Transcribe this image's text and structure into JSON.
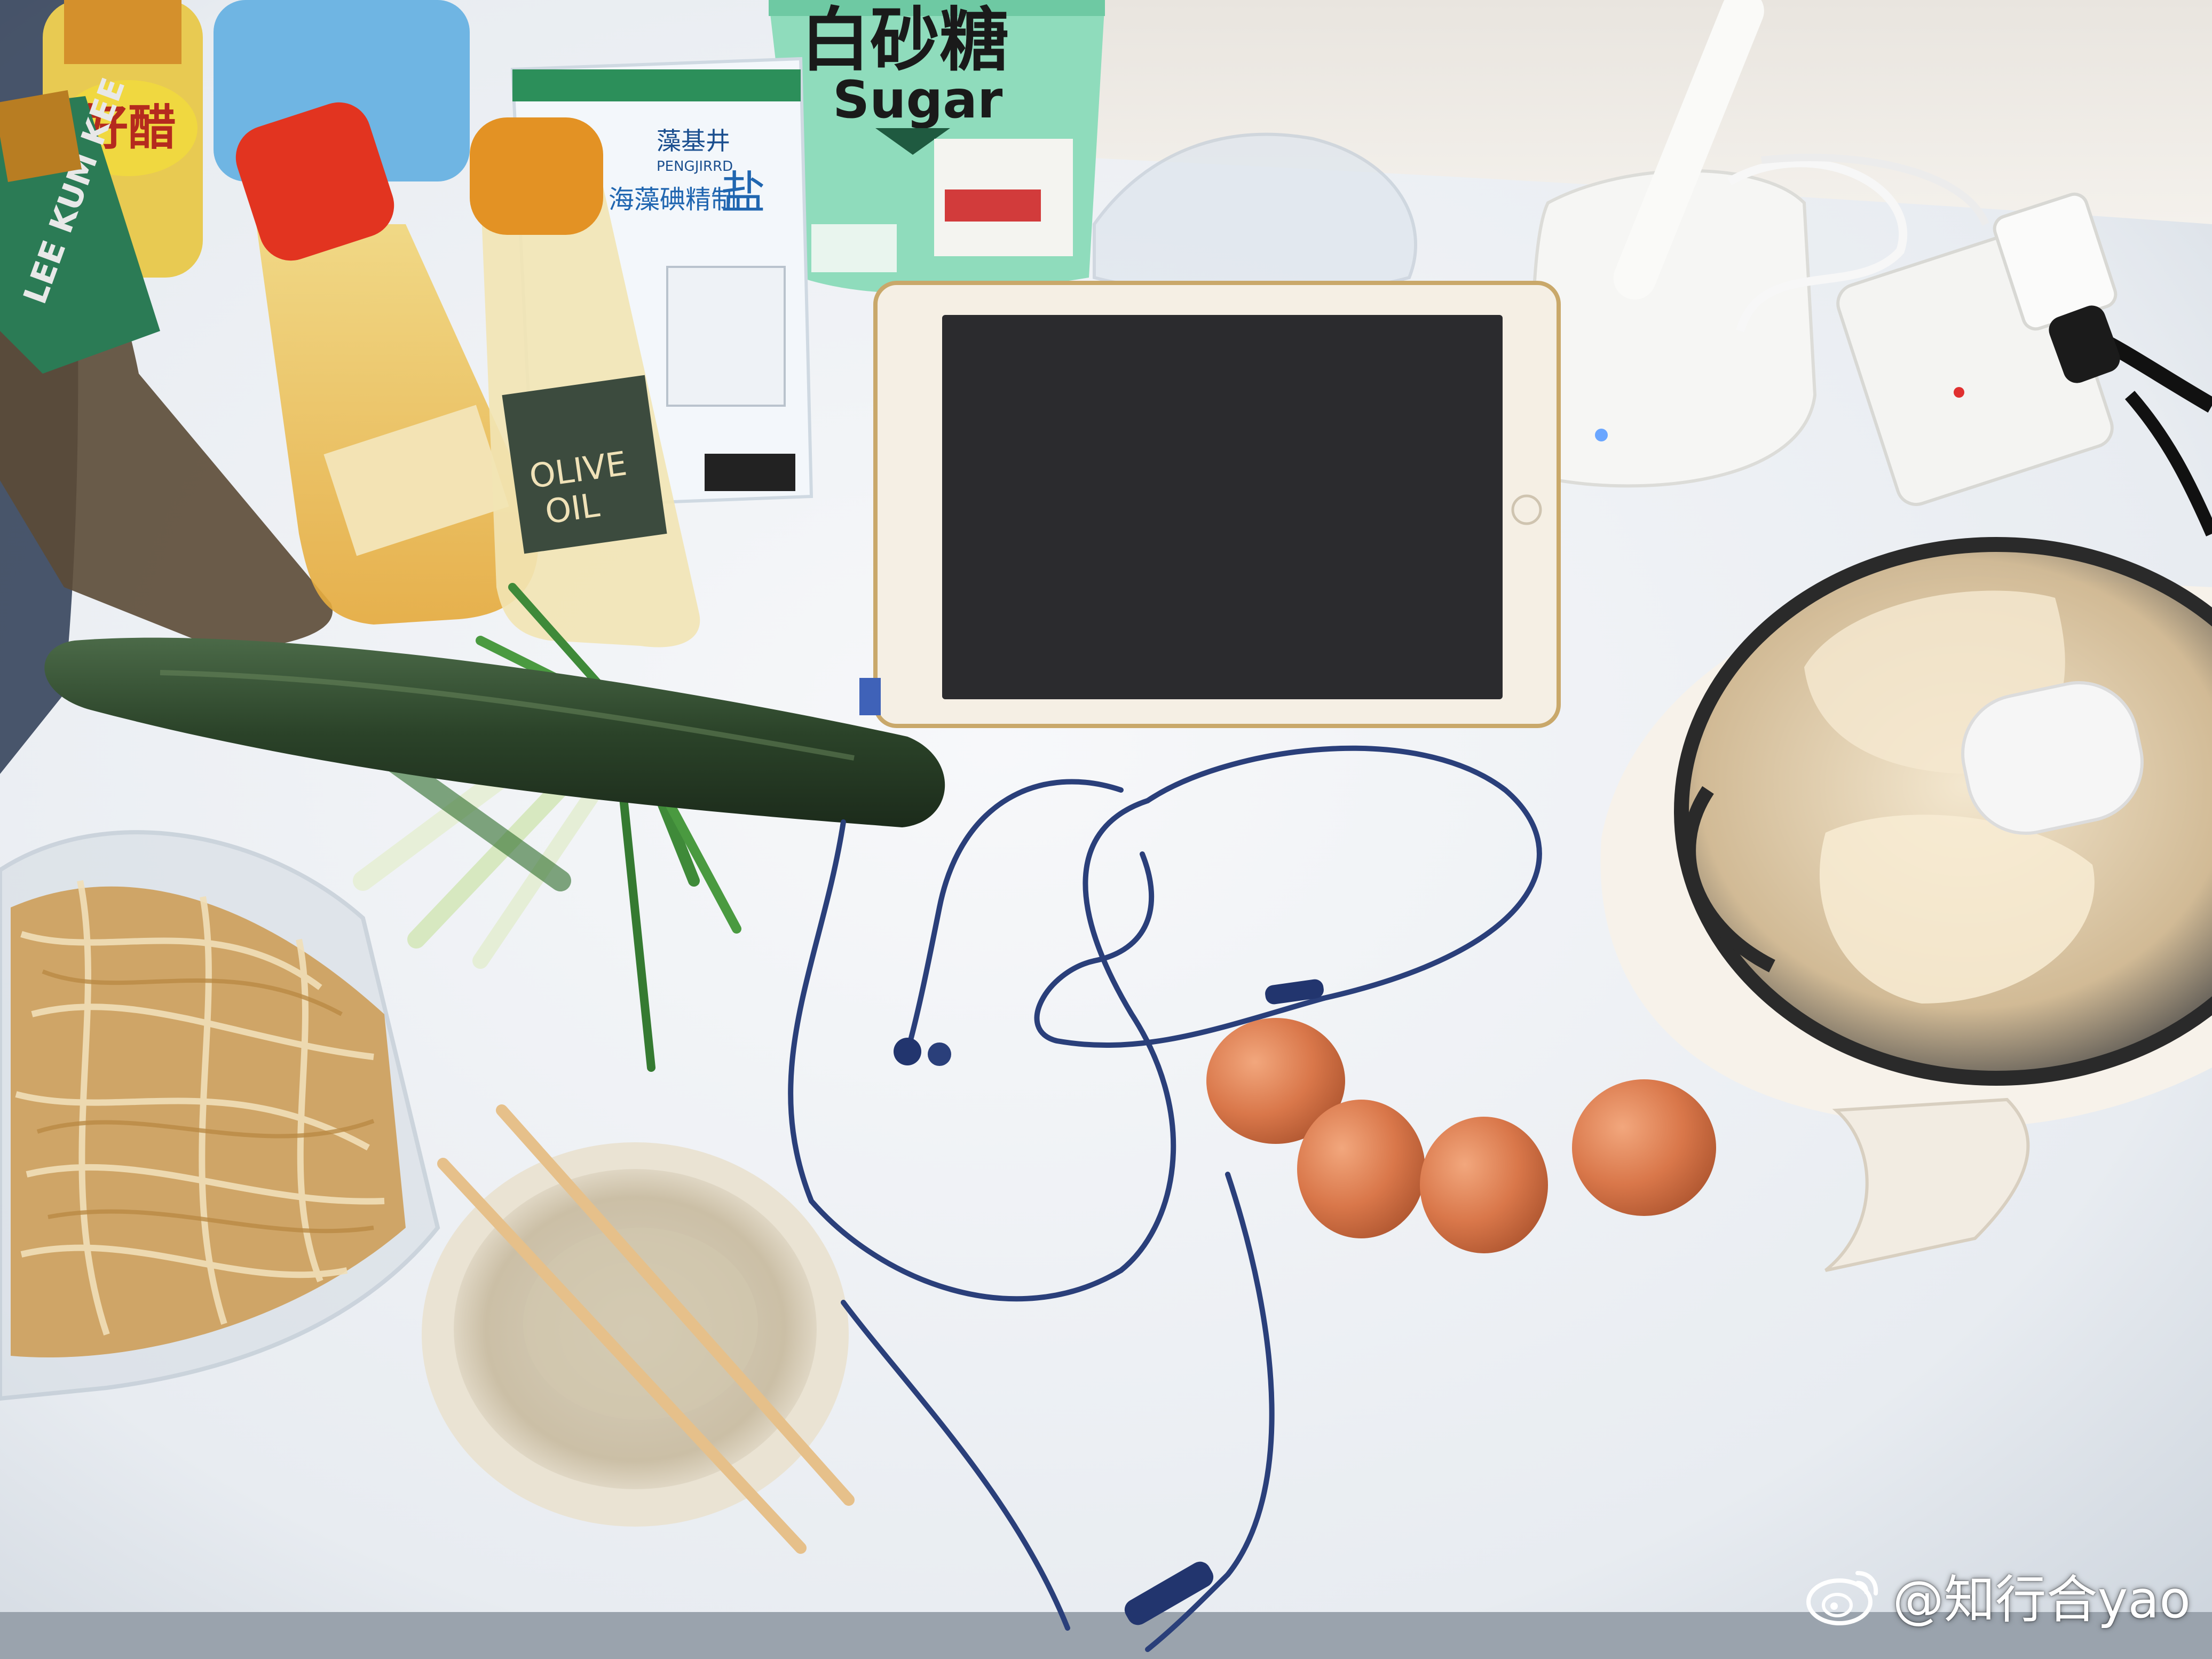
{
  "scene": {
    "description_items": [],
    "sugar_bag": {
      "title_cn": "白砂糖",
      "title_en": "Sugar"
    },
    "salt_bag": {
      "brand_cn": "藻基井",
      "brand_en": "PENGJIRRD",
      "type_cn": "海藻碘精制",
      "salt_char": "盐"
    },
    "olive_oil_bottle": {
      "line1": "OLIVE",
      "line2": "OIL"
    },
    "vinegar_bottle": {
      "text": "好醋"
    },
    "soy_bottle": {
      "text": "LEE KUM KEE"
    }
  },
  "watermark": {
    "text": "@知行合yao",
    "icon": "weibo-icon"
  },
  "colors": {
    "desk": "#f2f4f7",
    "tablet_frame": "#f5efe4",
    "tablet_screen": "#2b2b2e",
    "eggs": "#d9774a",
    "cucumber": "#2f4a2f",
    "sugar_bag": "#8fdcbc",
    "earphone_cable": "#2a3f7a"
  }
}
